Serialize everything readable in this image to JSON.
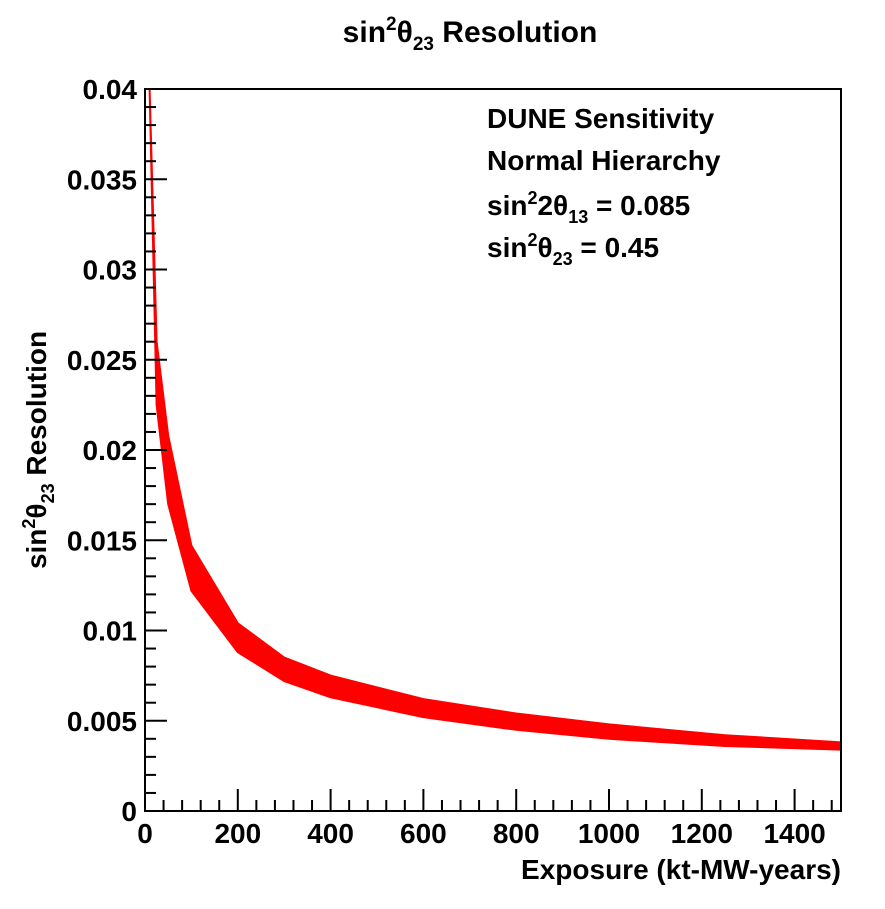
{
  "chart_data": {
    "type": "area",
    "title": {
      "base": "sin",
      "sup": "2",
      "theta": "θ",
      "sub": "23",
      "rest": " Resolution"
    },
    "xlabel": "Exposure (kt-MW-years)",
    "ylabel": {
      "base": "sin",
      "sup": "2",
      "theta": "θ",
      "sub": "23",
      "rest": "  Resolution"
    },
    "xlim": [
      0,
      1500
    ],
    "ylim": [
      0,
      0.04
    ],
    "x_ticks": [
      0,
      200,
      400,
      600,
      800,
      1000,
      1200,
      1400
    ],
    "x_tick_labels": [
      "0",
      "200",
      "400",
      "600",
      "800",
      "1000",
      "1200",
      "1400"
    ],
    "y_ticks": [
      0,
      0.005,
      0.01,
      0.015,
      0.02,
      0.025,
      0.03,
      0.035,
      0.04
    ],
    "y_tick_labels": [
      "0",
      "0.005",
      "0.01",
      "0.015",
      "0.02",
      "0.025",
      "0.03",
      "0.035",
      "0.04"
    ],
    "grid": false,
    "fill_color": "#ff0000",
    "band": {
      "x": [
        10,
        25,
        50,
        100,
        200,
        300,
        400,
        600,
        800,
        1000,
        1250,
        1500
      ],
      "upper": [
        0.04,
        0.026,
        0.0208,
        0.0147,
        0.0104,
        0.0085,
        0.0075,
        0.0062,
        0.0054,
        0.0048,
        0.0042,
        0.0038
      ],
      "lower": [
        0.04,
        0.0225,
        0.017,
        0.0122,
        0.0088,
        0.0072,
        0.0063,
        0.0052,
        0.0045,
        0.004,
        0.0036,
        0.0034
      ]
    },
    "annotations": {
      "line1": "DUNE Sensitivity",
      "line2": "Normal Hierarchy",
      "line3": {
        "base": "sin",
        "sup": "2",
        "mid": "2θ",
        "sub": "13",
        "rest": " = 0.085"
      },
      "line4": {
        "base": "sin",
        "sup": "2",
        "mid": "θ",
        "sub": "23",
        "rest": " = 0.45"
      }
    }
  }
}
